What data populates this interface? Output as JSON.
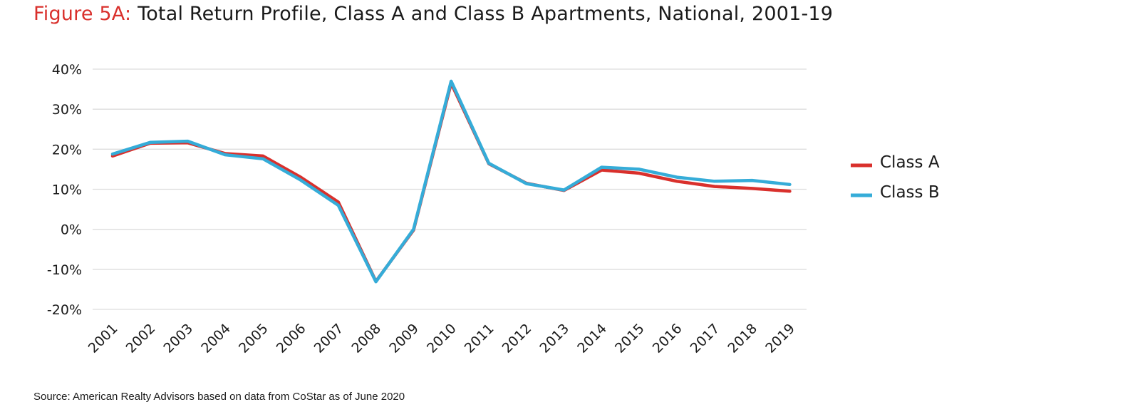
{
  "title_prefix": "Figure 5A:",
  "title_main": "Total Return Profile, Class A and Class B Apartments, National, 2001-19",
  "source": "Source: American Realty Advisors based on data from CoStar as of June 2020",
  "colors": {
    "class_a": "#d9302c",
    "class_b": "#35acd8",
    "grid": "#dddddd"
  },
  "chart_data": {
    "type": "line",
    "ylim": [
      -20,
      40
    ],
    "yticks": [
      40,
      30,
      20,
      10,
      0,
      -10,
      -20
    ],
    "ytick_labels": [
      "40%",
      "30%",
      "20%",
      "10%",
      "0%",
      "-10%",
      "-20%"
    ],
    "categories": [
      "2001",
      "2002",
      "2003",
      "2004",
      "2005",
      "2006",
      "2007",
      "2008",
      "2009",
      "2010",
      "2011",
      "2012",
      "2013",
      "2014",
      "2015",
      "2016",
      "2017",
      "2018",
      "2019"
    ],
    "grid": true,
    "legend_position": "right",
    "series": [
      {
        "name": "Class A",
        "values": [
          18.3,
          21.5,
          21.6,
          18.9,
          18.3,
          13.0,
          6.8,
          -13.0,
          -0.2,
          36.5,
          16.4,
          11.5,
          9.7,
          14.8,
          14.0,
          12.0,
          10.7,
          10.2,
          9.5
        ]
      },
      {
        "name": "Class B",
        "values": [
          18.8,
          21.7,
          22.0,
          18.6,
          17.6,
          12.3,
          6.0,
          -13.1,
          0.0,
          37.0,
          16.5,
          11.4,
          9.8,
          15.5,
          15.0,
          13.0,
          12.0,
          12.2,
          11.2
        ]
      }
    ]
  }
}
